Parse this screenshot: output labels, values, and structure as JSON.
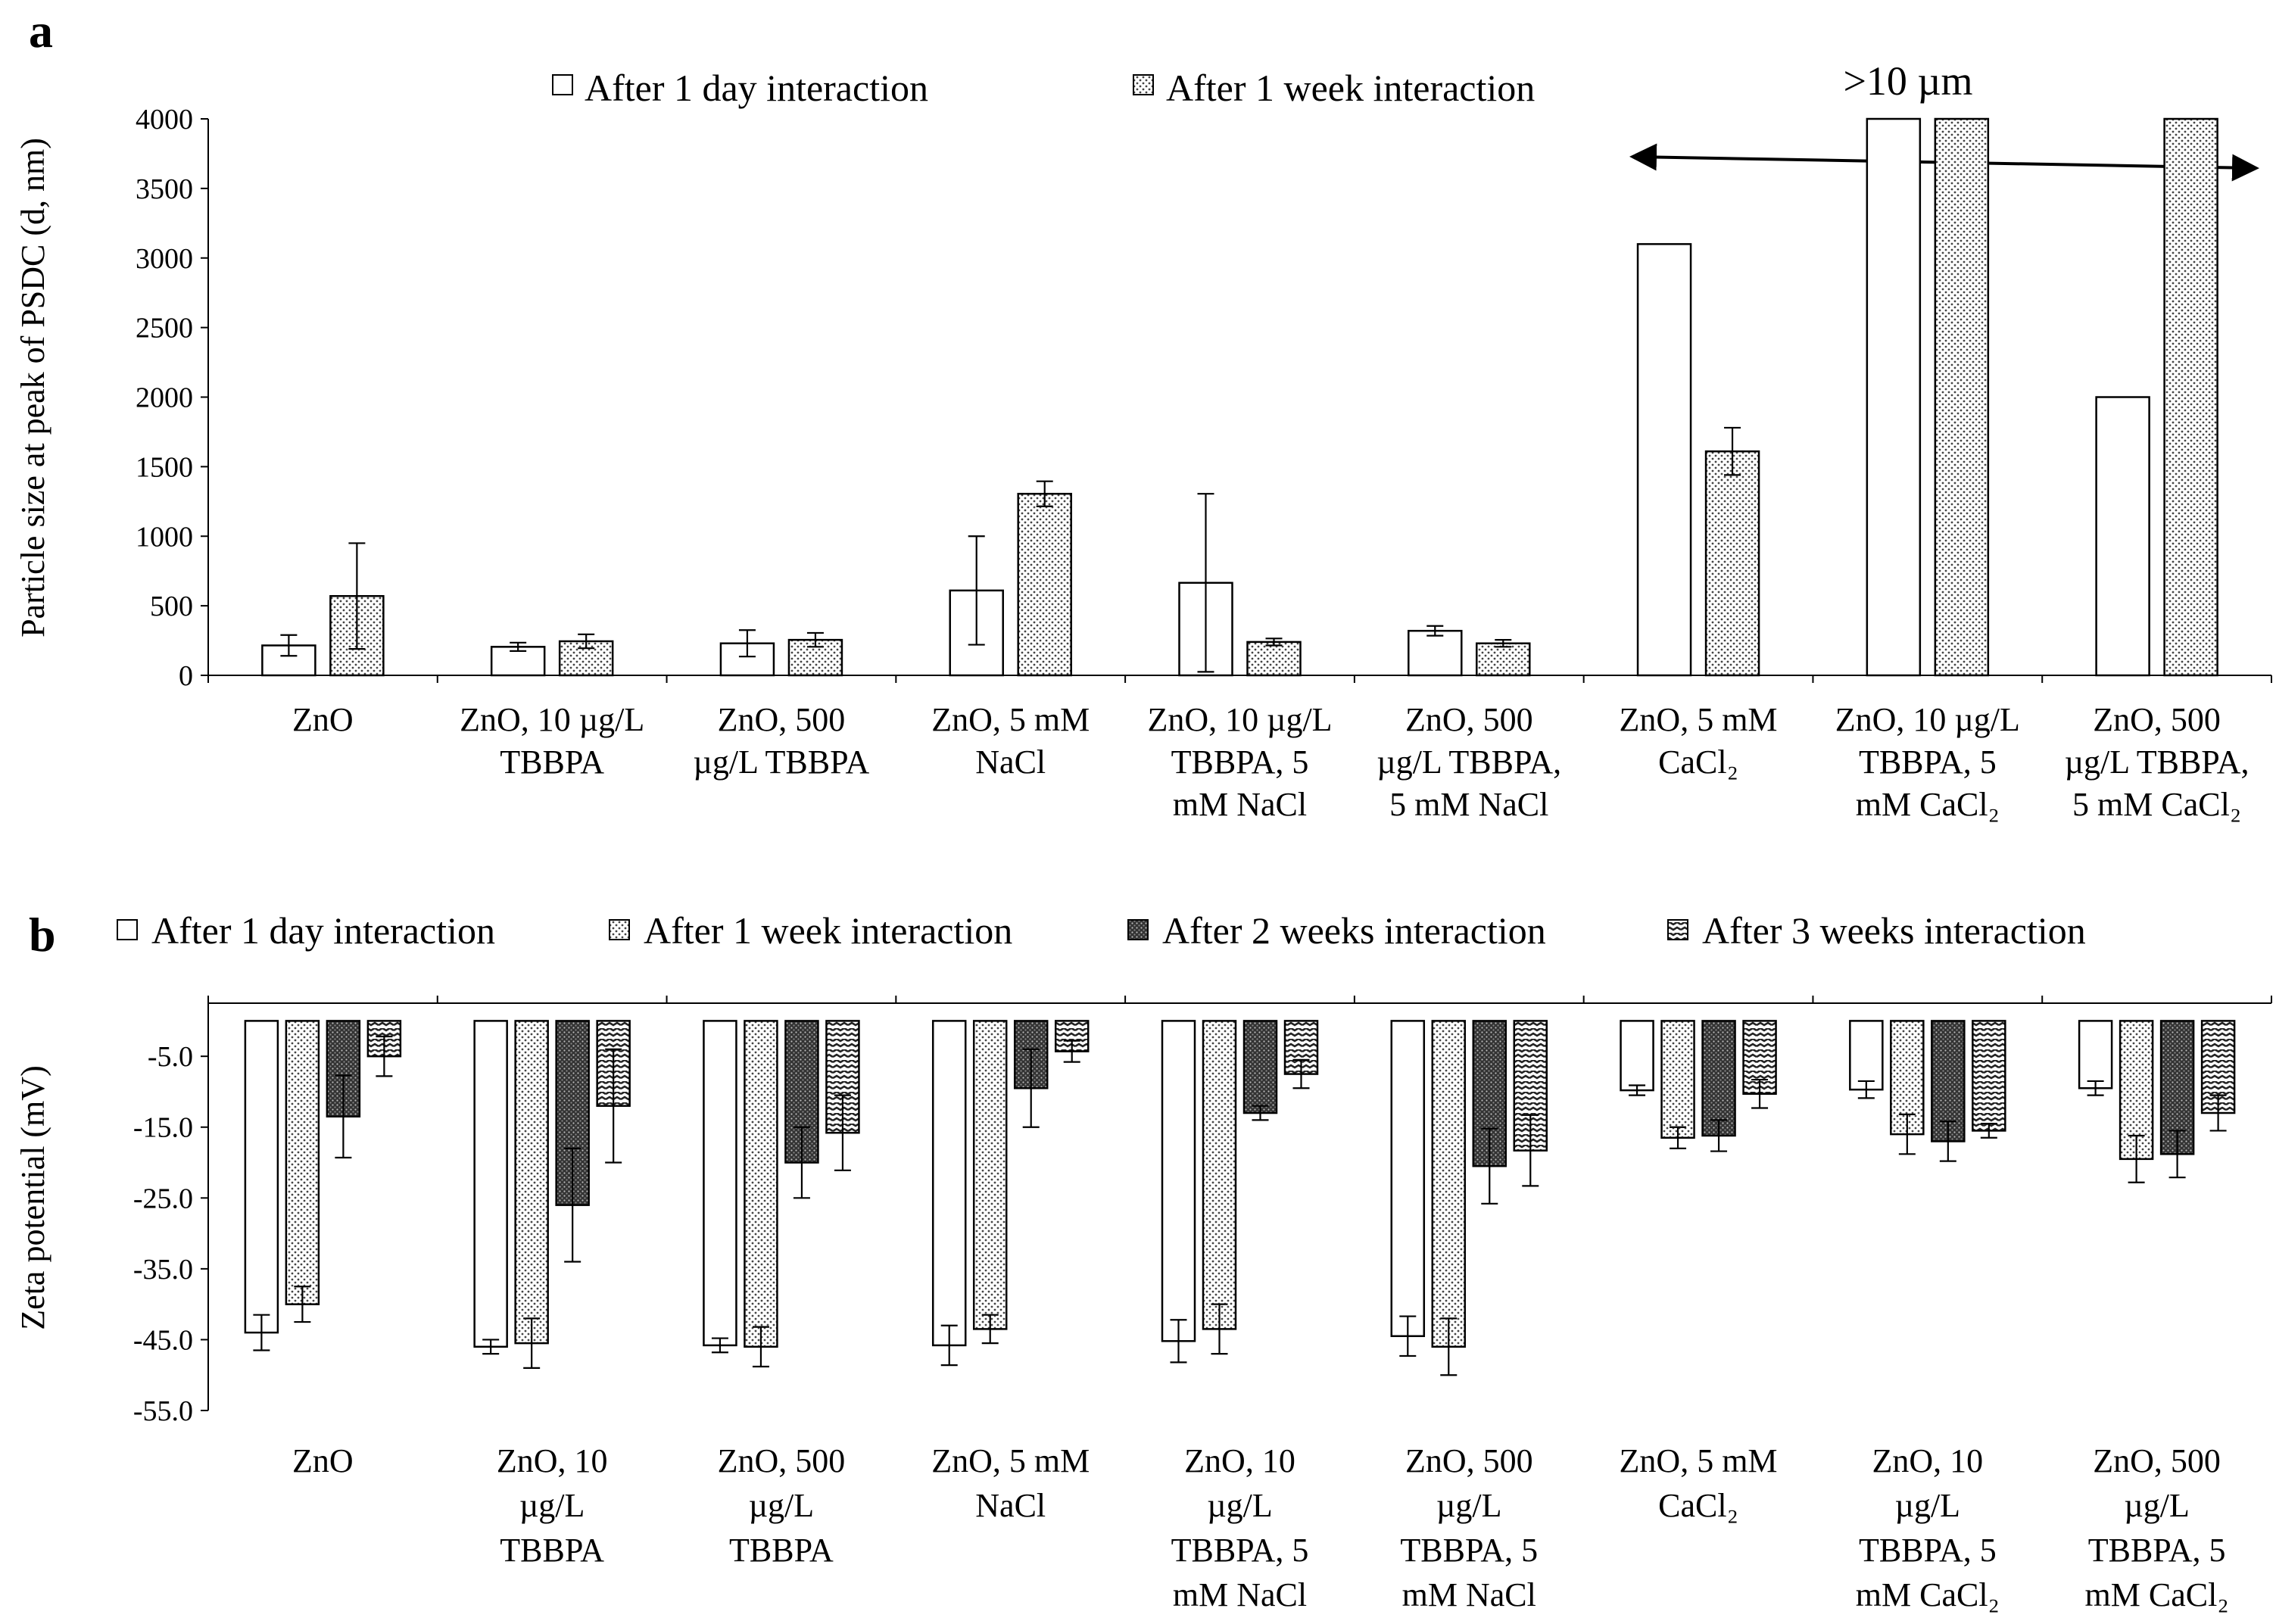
{
  "chart_data": [
    {
      "panel": "a",
      "type": "bar",
      "title": "",
      "xlabel": "",
      "ylabel": "Particle size at peak of PSDC (d, nm)",
      "ylim": [
        0,
        4000
      ],
      "yticks": [
        "0",
        "500",
        "1000",
        "1500",
        "2000",
        "2500",
        "3000",
        "3500",
        "4000"
      ],
      "annotation": ">10 µm",
      "legend_position": "top",
      "categories": [
        [
          "ZnO"
        ],
        [
          "ZnO, 10 µg/L",
          "TBBPA"
        ],
        [
          "ZnO, 500",
          "µg/L TBBPA"
        ],
        [
          "ZnO, 5 mM",
          "NaCl"
        ],
        [
          "ZnO, 10 µg/L",
          "TBBPA, 5",
          "mM NaCl"
        ],
        [
          "ZnO, 500",
          "µg/L TBBPA,",
          "5 mM NaCl"
        ],
        [
          "ZnO, 5 mM",
          "CaCl₂"
        ],
        [
          "ZnO, 10 µg/L",
          "TBBPA, 5",
          "mM CaCl₂"
        ],
        [
          "ZnO, 500",
          "µg/L TBBPA,",
          "5 mM CaCl₂"
        ]
      ],
      "series": [
        {
          "name": "After 1 day interaction",
          "pattern": "white",
          "values": [
            215,
            205,
            230,
            610,
            665,
            320,
            3100,
            4000,
            2000
          ],
          "errors": [
            75,
            30,
            95,
            390,
            640,
            35,
            null,
            null,
            null
          ]
        },
        {
          "name": "After 1 week interaction",
          "pattern": "dots",
          "values": [
            570,
            245,
            255,
            1305,
            240,
            230,
            1610,
            4000,
            4000
          ],
          "errors": [
            380,
            50,
            50,
            90,
            25,
            25,
            170,
            null,
            null
          ]
        }
      ]
    },
    {
      "panel": "b",
      "type": "bar",
      "title": "",
      "xlabel": "",
      "ylabel": "Zeta potential (mV)",
      "ylim": [
        -55,
        2.5
      ],
      "yticks": [
        "-5.0",
        "-15.0",
        "-25.0",
        "-35.0",
        "-45.0",
        "-55.0"
      ],
      "legend_position": "top",
      "categories": [
        [
          "ZnO"
        ],
        [
          "ZnO, 10",
          "µg/L",
          "TBBPA"
        ],
        [
          "ZnO, 500",
          "µg/L",
          "TBBPA"
        ],
        [
          "ZnO, 5 mM",
          "NaCl"
        ],
        [
          "ZnO, 10",
          "µg/L",
          "TBBPA, 5",
          "mM NaCl"
        ],
        [
          "ZnO, 500",
          "µg/L",
          "TBBPA, 5",
          "mM NaCl"
        ],
        [
          "ZnO, 5 mM",
          "CaCl₂"
        ],
        [
          "ZnO, 10",
          "µg/L",
          "TBBPA, 5",
          "mM CaCl₂"
        ],
        [
          "ZnO, 500",
          "µg/L",
          "TBBPA, 5",
          "mM CaCl₂"
        ]
      ],
      "series": [
        {
          "name": "After 1 day interaction",
          "pattern": "white",
          "values": [
            -44.0,
            -46.0,
            -45.8,
            -45.8,
            -45.2,
            -44.5,
            -9.8,
            -9.7,
            -9.5
          ],
          "errors": [
            2.5,
            1.0,
            1.0,
            2.8,
            3.0,
            2.8,
            0.7,
            1.2,
            1.0
          ]
        },
        {
          "name": "After 1 week interaction",
          "pattern": "dots",
          "values": [
            -40.0,
            -45.5,
            -46.0,
            -43.5,
            -43.5,
            -46.0,
            -16.5,
            -16.0,
            -19.5
          ],
          "errors": [
            2.5,
            3.5,
            2.8,
            2.0,
            3.5,
            4.0,
            1.5,
            2.8,
            3.3
          ]
        },
        {
          "name": "After 2 weeks interaction",
          "pattern": "dark",
          "values": [
            -13.5,
            -26.0,
            -20.0,
            -9.5,
            -13.0,
            -20.5,
            -16.2,
            -17.0,
            -18.8
          ],
          "errors": [
            5.8,
            8.0,
            5.0,
            5.5,
            1.0,
            5.3,
            2.2,
            2.8,
            3.3
          ]
        },
        {
          "name": "After 3 weeks interaction",
          "pattern": "waves",
          "values": [
            -5.0,
            -12.0,
            -15.8,
            -4.3,
            -7.5,
            -18.3,
            -10.3,
            -15.5,
            -13.0
          ],
          "errors": [
            2.8,
            8.0,
            5.3,
            1.5,
            2.0,
            5.0,
            2.0,
            1.0,
            2.5
          ]
        }
      ]
    }
  ]
}
